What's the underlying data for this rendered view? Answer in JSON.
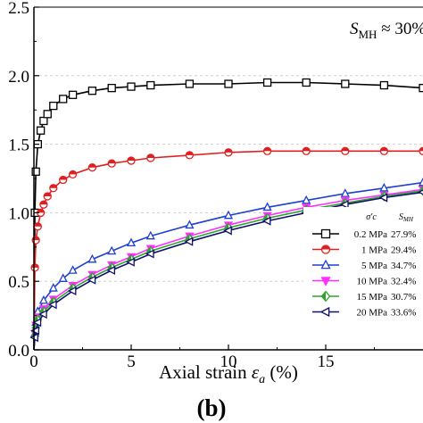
{
  "chart_data": {
    "type": "line",
    "title": "",
    "xlabel_prefix": "Axial strain ",
    "xlabel_symbol": "ε",
    "xlabel_sub": "a",
    "xlabel_suffix": " (%)",
    "ylabel": "",
    "xlim": [
      0,
      20
    ],
    "ylim": [
      0,
      2.5
    ],
    "xticks": [
      "0",
      "5",
      "10",
      "15"
    ],
    "yticks": [
      "0.0",
      "0.5",
      "1.0",
      "1.5",
      "2.0",
      "2.5"
    ],
    "grid": "horizontal dashed",
    "annotation": {
      "main": "S",
      "sub": "MH",
      "rest": " ≈ 30%"
    },
    "panel_label": "(b)",
    "legend": {
      "placement": "bottom-right",
      "header_sigma": "σ′c",
      "header_s": "S",
      "header_s_sub": "MH"
    },
    "series": [
      {
        "name": "0.2 MPa",
        "smh": "27.9%",
        "color": "#000000",
        "marker": "square",
        "x": [
          0,
          0.05,
          0.1,
          0.2,
          0.35,
          0.5,
          0.7,
          1.0,
          1.5,
          2.0,
          3,
          4,
          5,
          6,
          8,
          10,
          12,
          14,
          16,
          18,
          20
        ],
        "y": [
          0,
          1.0,
          1.3,
          1.5,
          1.6,
          1.67,
          1.72,
          1.78,
          1.83,
          1.86,
          1.89,
          1.91,
          1.92,
          1.93,
          1.94,
          1.94,
          1.95,
          1.95,
          1.94,
          1.93,
          1.91
        ]
      },
      {
        "name": "1 MPa",
        "smh": "29.4%",
        "color": "#e02020",
        "marker": "circle",
        "x": [
          0,
          0.05,
          0.1,
          0.2,
          0.35,
          0.5,
          0.7,
          1.0,
          1.5,
          2.0,
          3,
          4,
          5,
          6,
          8,
          10,
          12,
          14,
          16,
          18,
          20
        ],
        "y": [
          0,
          0.6,
          0.8,
          0.9,
          1.0,
          1.06,
          1.12,
          1.18,
          1.24,
          1.28,
          1.33,
          1.36,
          1.38,
          1.4,
          1.42,
          1.44,
          1.45,
          1.45,
          1.45,
          1.45,
          1.45
        ]
      },
      {
        "name": "5 MPa",
        "smh": "34.7%",
        "color": "#1f3fd0",
        "marker": "triangle-up",
        "x": [
          0,
          0.05,
          0.1,
          0.2,
          0.5,
          1.0,
          1.5,
          2,
          3,
          4,
          5,
          6,
          8,
          10,
          12,
          14,
          16,
          18,
          20
        ],
        "y": [
          0,
          0.12,
          0.2,
          0.28,
          0.36,
          0.45,
          0.52,
          0.58,
          0.66,
          0.72,
          0.78,
          0.83,
          0.91,
          0.98,
          1.04,
          1.09,
          1.14,
          1.18,
          1.22
        ]
      },
      {
        "name": "10 MPa",
        "smh": "32.4%",
        "color": "#ff30ff",
        "marker": "triangle-down",
        "x": [
          0,
          0.05,
          0.1,
          0.2,
          0.5,
          1.0,
          2,
          3,
          4,
          5,
          6,
          8,
          10,
          12,
          14,
          16,
          18,
          20
        ],
        "y": [
          0,
          0.12,
          0.18,
          0.24,
          0.3,
          0.37,
          0.47,
          0.55,
          0.62,
          0.68,
          0.74,
          0.83,
          0.91,
          0.98,
          1.04,
          1.09,
          1.13,
          1.17
        ]
      },
      {
        "name": "15 MPa",
        "smh": "30.7%",
        "color": "#2ea32e",
        "marker": "diamond",
        "x": [
          0,
          0.05,
          0.1,
          0.2,
          0.5,
          1.0,
          2,
          3,
          4,
          5,
          6,
          8,
          10,
          12,
          14,
          16,
          18,
          20
        ],
        "y": [
          0,
          0.1,
          0.16,
          0.22,
          0.28,
          0.35,
          0.45,
          0.53,
          0.6,
          0.66,
          0.72,
          0.81,
          0.89,
          0.96,
          1.02,
          1.07,
          1.12,
          1.16
        ]
      },
      {
        "name": "20 MPa",
        "smh": "33.6%",
        "color": "#10106b",
        "marker": "triangle-left",
        "x": [
          0,
          0.05,
          0.1,
          0.2,
          0.5,
          1.0,
          2,
          3,
          4,
          5,
          6,
          8,
          10,
          12,
          14,
          16,
          18,
          20
        ],
        "y": [
          0,
          0.09,
          0.14,
          0.2,
          0.26,
          0.33,
          0.43,
          0.51,
          0.58,
          0.64,
          0.7,
          0.79,
          0.87,
          0.94,
          1.0,
          1.06,
          1.11,
          1.15
        ]
      }
    ]
  }
}
